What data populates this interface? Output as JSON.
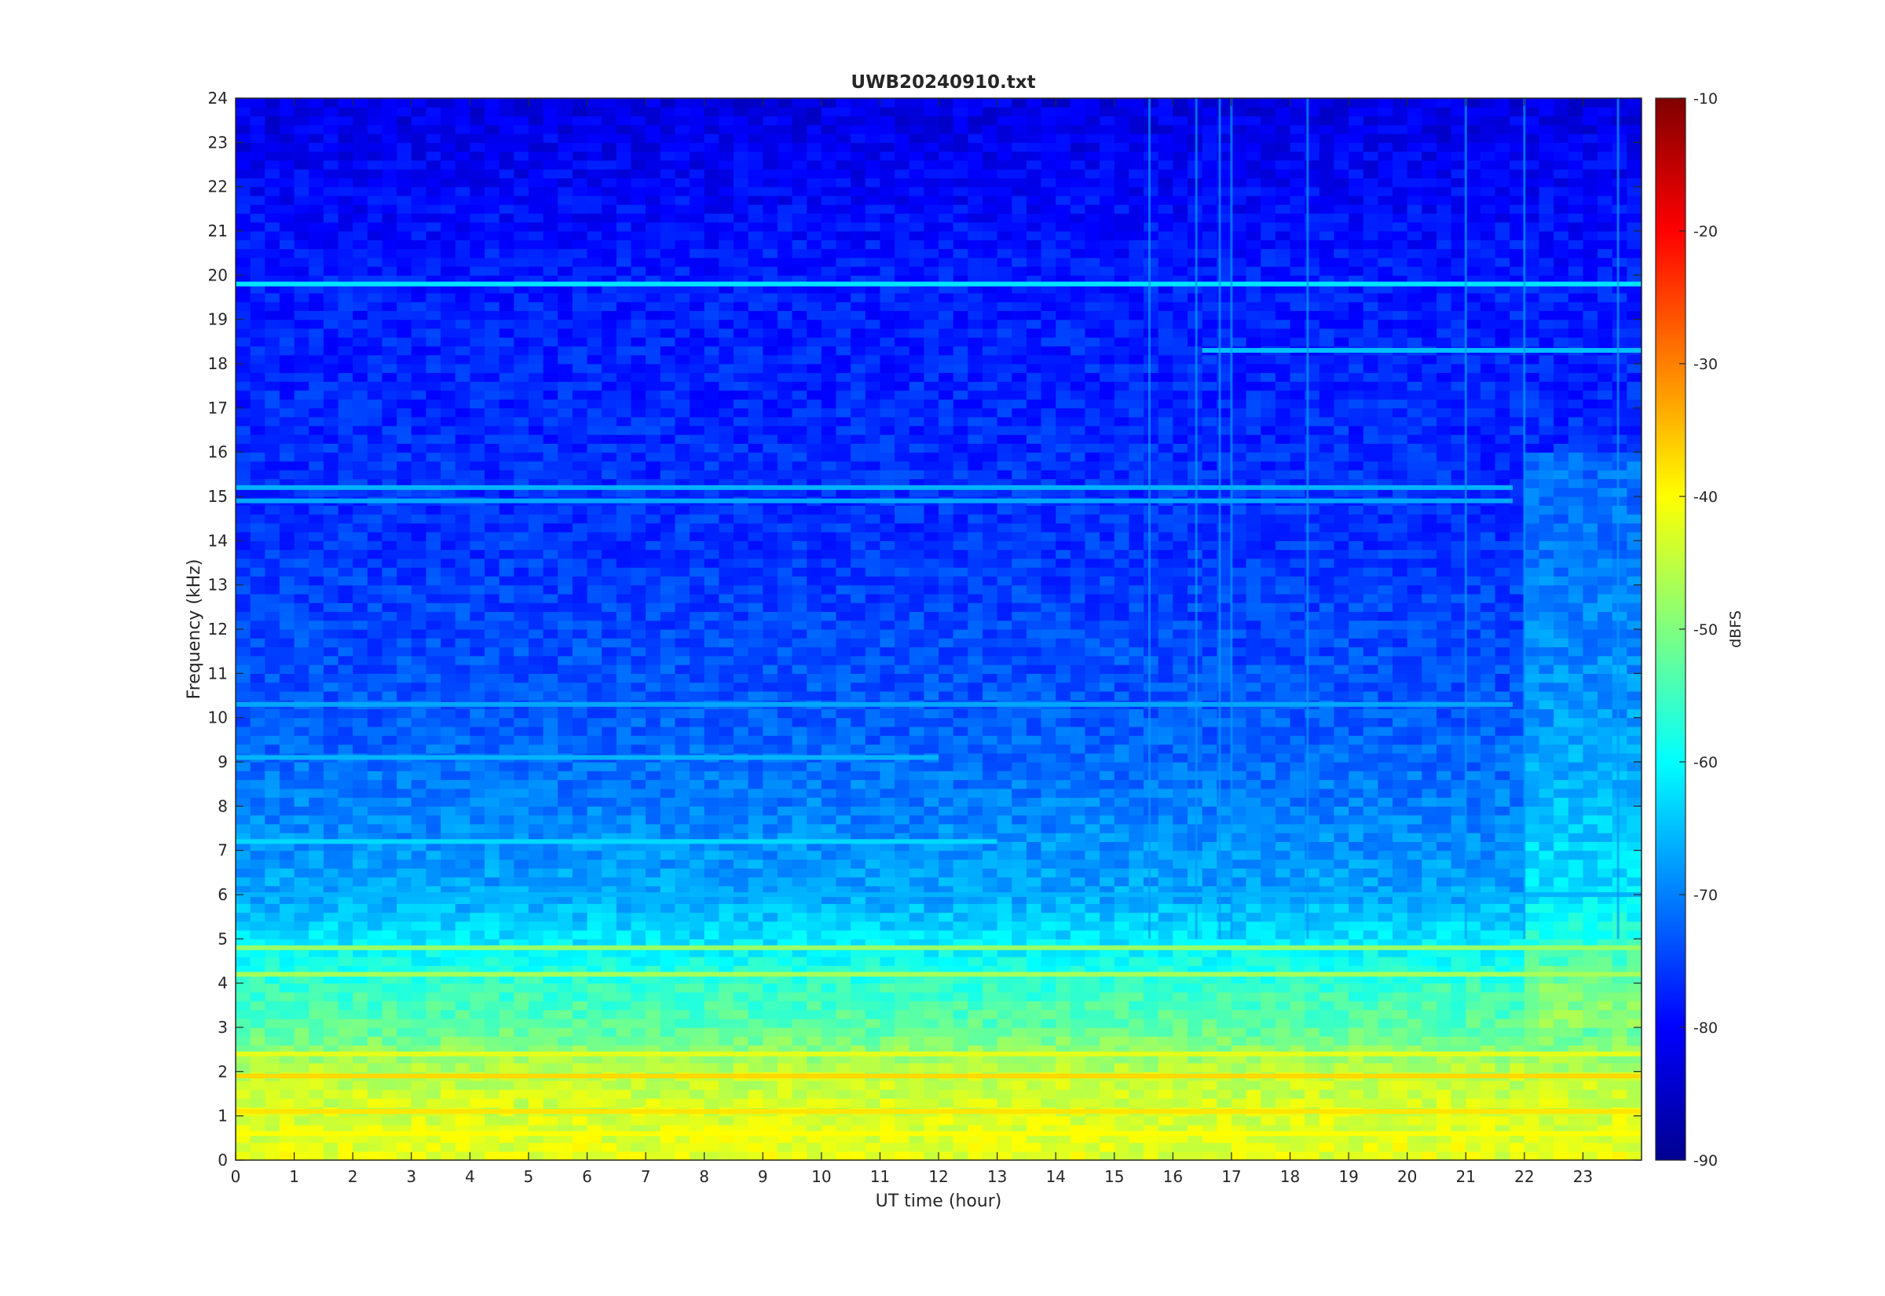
{
  "chart_data": {
    "type": "heatmap",
    "title": "UWB20240910.txt",
    "xlabel": "UT time (hour)",
    "ylabel": "Frequency (kHz)",
    "colorbar_label": "dBFS",
    "colormap": "jet",
    "xlim": [
      0,
      24
    ],
    "ylim": [
      0,
      24
    ],
    "clim": [
      -90,
      -10
    ],
    "x_ticks": [
      "0",
      "1",
      "2",
      "3",
      "4",
      "5",
      "6",
      "7",
      "8",
      "9",
      "10",
      "11",
      "12",
      "13",
      "14",
      "15",
      "16",
      "17",
      "18",
      "19",
      "20",
      "21",
      "22",
      "23"
    ],
    "y_ticks": [
      "0",
      "1",
      "2",
      "3",
      "4",
      "5",
      "6",
      "7",
      "8",
      "9",
      "10",
      "11",
      "12",
      "13",
      "14",
      "15",
      "16",
      "17",
      "18",
      "19",
      "20",
      "21",
      "22",
      "23",
      "24"
    ],
    "colorbar_ticks": [
      "-90",
      "-80",
      "-70",
      "-60",
      "-50",
      "-40",
      "-30",
      "-20",
      "-10"
    ],
    "background_level_profile": [
      {
        "freq_khz": 0,
        "dbfs": -42
      },
      {
        "freq_khz": 1,
        "dbfs": -43
      },
      {
        "freq_khz": 2,
        "dbfs": -45
      },
      {
        "freq_khz": 3,
        "dbfs": -53
      },
      {
        "freq_khz": 4,
        "dbfs": -56
      },
      {
        "freq_khz": 5,
        "dbfs": -62
      },
      {
        "freq_khz": 6,
        "dbfs": -67
      },
      {
        "freq_khz": 8,
        "dbfs": -70
      },
      {
        "freq_khz": 10,
        "dbfs": -73
      },
      {
        "freq_khz": 14,
        "dbfs": -76
      },
      {
        "freq_khz": 20,
        "dbfs": -78
      },
      {
        "freq_khz": 24,
        "dbfs": -82
      }
    ],
    "persistent_lines": [
      {
        "freq_khz": 19.8,
        "dbfs": -62,
        "t_start": 0,
        "t_end": 24
      },
      {
        "freq_khz": 18.3,
        "dbfs": -65,
        "t_start": 16.5,
        "t_end": 24
      },
      {
        "freq_khz": 15.2,
        "dbfs": -66,
        "t_start": 0,
        "t_end": 21.8
      },
      {
        "freq_khz": 14.9,
        "dbfs": -67,
        "t_start": 0,
        "t_end": 21.8
      },
      {
        "freq_khz": 10.3,
        "dbfs": -67,
        "t_start": 0,
        "t_end": 21.8
      },
      {
        "freq_khz": 9.1,
        "dbfs": -66,
        "t_start": 0,
        "t_end": 12
      },
      {
        "freq_khz": 7.2,
        "dbfs": -63,
        "t_start": 0,
        "t_end": 13
      },
      {
        "freq_khz": 6.0,
        "dbfs": -66,
        "t_start": 0,
        "t_end": 24
      },
      {
        "freq_khz": 4.8,
        "dbfs": -48,
        "t_start": 0,
        "t_end": 24
      },
      {
        "freq_khz": 4.2,
        "dbfs": -47,
        "t_start": 0,
        "t_end": 24
      },
      {
        "freq_khz": 2.4,
        "dbfs": -42,
        "t_start": 0,
        "t_end": 24
      },
      {
        "freq_khz": 1.9,
        "dbfs": -37,
        "t_start": 0,
        "t_end": 24
      },
      {
        "freq_khz": 1.1,
        "dbfs": -38,
        "t_start": 0,
        "t_end": 24
      },
      {
        "freq_khz": 0.6,
        "dbfs": -40,
        "t_start": 0,
        "t_end": 24
      }
    ],
    "vertical_transients_hour": [
      15.6,
      16.4,
      16.8,
      17.0,
      18.3,
      21.0,
      22.0,
      23.6
    ]
  }
}
